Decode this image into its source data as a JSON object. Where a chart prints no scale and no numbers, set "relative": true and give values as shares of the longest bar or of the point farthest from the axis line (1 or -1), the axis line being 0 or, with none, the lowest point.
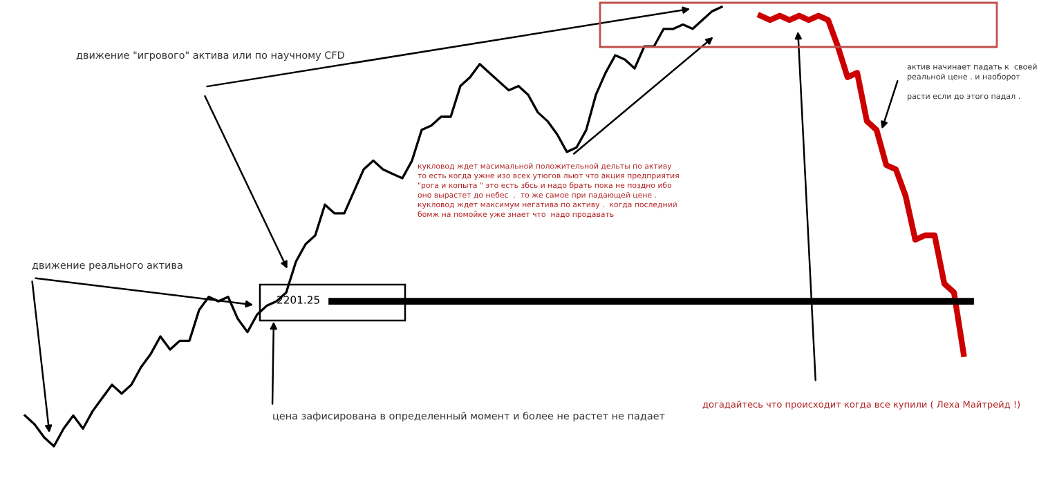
{
  "chart_data": {
    "type": "line",
    "relative": true,
    "categories": [
      null,
      null,
      null,
      null,
      null,
      null,
      null,
      null,
      null,
      null,
      null,
      null,
      null,
      null,
      null,
      null,
      null,
      null,
      null,
      null,
      null,
      null,
      null,
      null,
      null,
      null,
      null,
      null,
      null,
      null,
      null,
      null,
      null,
      null,
      null,
      null,
      null,
      null,
      null,
      null,
      null,
      null,
      null,
      null,
      null,
      null,
      null,
      null,
      null,
      null,
      null,
      null,
      null,
      null,
      null,
      null,
      null,
      null,
      null,
      null,
      null,
      null,
      null,
      null,
      null,
      null,
      null,
      null,
      null,
      null,
      null,
      null,
      null,
      null,
      null,
      null,
      null,
      null,
      null,
      null,
      null,
      null,
      null,
      null,
      null,
      null,
      null,
      null,
      null,
      null,
      null,
      null,
      null,
      null,
      null,
      null,
      null,
      null
    ],
    "series": [
      {
        "color": "#000000",
        "values": [
          0.07,
          0.05,
          0.02,
          0.0,
          0.04,
          0.07,
          0.04,
          0.08,
          0.11,
          0.14,
          0.12,
          0.14,
          0.18,
          0.21,
          0.25,
          0.22,
          0.24,
          0.24,
          0.31,
          0.34,
          0.33,
          0.34,
          0.29,
          0.26,
          0.3,
          0.32,
          0.33,
          0.35,
          0.42,
          0.46,
          0.48,
          0.55,
          0.53,
          0.53,
          0.58,
          0.63,
          0.65,
          0.63,
          0.62,
          0.61,
          0.65,
          0.72,
          0.73,
          0.75,
          0.75,
          0.82,
          0.84,
          0.87,
          0.85,
          0.83,
          0.81,
          0.82,
          0.8,
          0.76,
          0.74,
          0.71,
          0.67,
          0.68,
          0.72,
          0.8,
          0.85,
          0.89,
          0.88,
          0.86,
          0.91,
          0.91,
          0.95,
          0.95,
          0.96,
          0.95,
          0.97,
          0.99,
          1.0,
          null,
          null,
          null,
          null,
          null,
          null,
          null,
          null,
          null,
          null,
          null,
          null,
          null,
          null,
          null,
          null,
          null,
          null,
          null,
          null,
          null,
          null,
          null,
          null,
          null
        ]
      },
      {
        "color": "#cc0000",
        "values": [
          null,
          null,
          null,
          null,
          null,
          null,
          null,
          null,
          null,
          null,
          null,
          null,
          null,
          null,
          null,
          null,
          null,
          null,
          null,
          null,
          null,
          null,
          null,
          null,
          null,
          null,
          null,
          null,
          null,
          null,
          null,
          null,
          null,
          null,
          null,
          null,
          null,
          null,
          null,
          null,
          null,
          null,
          null,
          null,
          null,
          null,
          null,
          null,
          null,
          null,
          null,
          null,
          null,
          null,
          null,
          null,
          null,
          null,
          null,
          null,
          null,
          null,
          null,
          null,
          null,
          null,
          null,
          null,
          null,
          null,
          null,
          null,
          null,
          null,
          null,
          null,
          0.98,
          0.97,
          0.98,
          0.97,
          0.98,
          0.97,
          0.98,
          0.97,
          0.91,
          0.84,
          0.85,
          0.74,
          0.72,
          0.64,
          0.63,
          0.57,
          0.47,
          0.48,
          0.48,
          0.37,
          0.35,
          0.21
        ]
      }
    ],
    "ref_lines": [
      {
        "axis": "y",
        "value": 0.33,
        "color": "#000000"
      }
    ],
    "annotations": [
      "движение \"игрового\" актива или по научному CFD",
      "движение реального актива",
      "кукловод ждет масимальной положительной дельты по активу\nто есть когда ужне изо всех утюгов льют что акция предприятия\n\"рога и копыта \" это есть збсь и надо брать пока не поздно ибо\nоно вырастет до небес  .  то же самое при падающей цене .\nкукловод ждет максимум негатива по активу .  когда последний\nбомж на помойке уже знает что  надо продавать",
      "цена зафисирована в определенный момент и более не растет не падает",
      "актив начинает падать к  своей\nреальной цене . и наоборот\n\nрасти если до этого падал .",
      "догадайтесь что происходит когда все купили ( Леха Майтрейд !)",
      "2201.25"
    ]
  }
}
